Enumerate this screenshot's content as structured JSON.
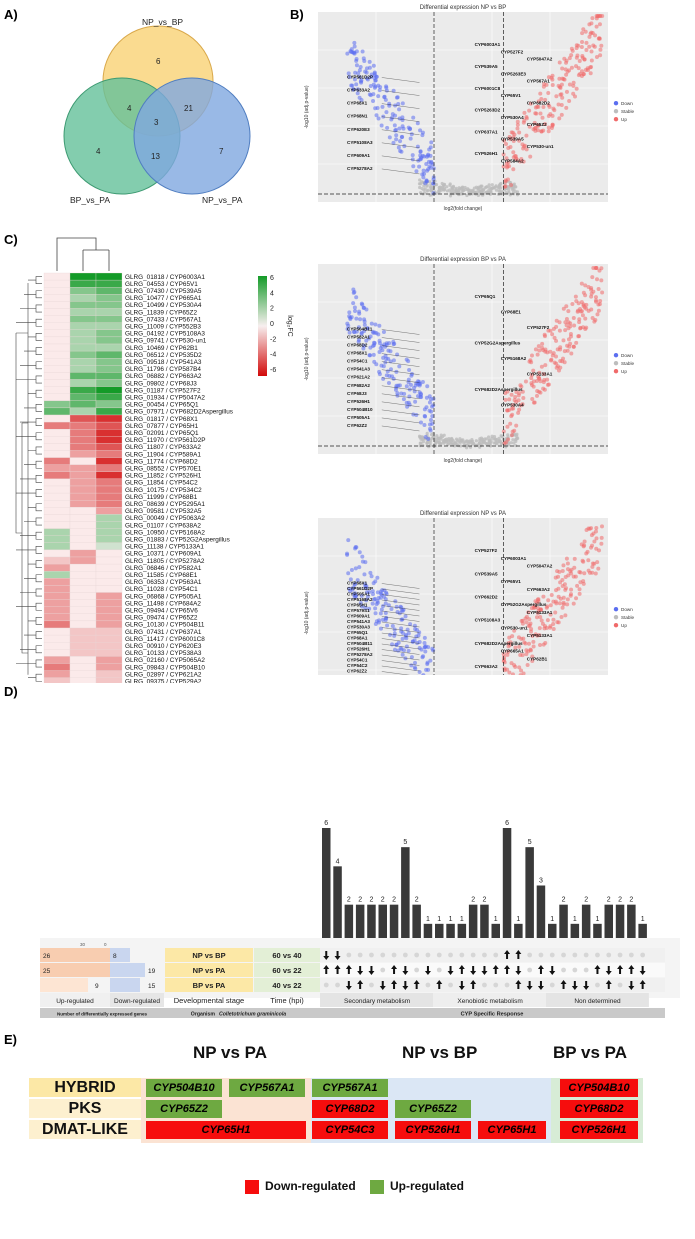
{
  "panels": {
    "a": "A)",
    "b": "B)",
    "c": "C)",
    "d": "D)",
    "e": "E)"
  },
  "venn": {
    "sets": [
      {
        "name": "NP_vs_BP",
        "color": "#f9d57c"
      },
      {
        "name": "BP_vs_PA",
        "color": "#64c09a"
      },
      {
        "name": "NP_vs_PA",
        "color": "#7fa8e0"
      }
    ],
    "regions": {
      "np_bp_only": "6",
      "bp_pa_only": "4",
      "np_pa_only": "7",
      "npbp_bppa": "4",
      "npbp_nppa": "21",
      "bppa_nppa": "13",
      "all": "3"
    }
  },
  "volcano": {
    "titles": [
      "Differential expression NP vs BP",
      "Differential expression BP vs PA",
      "Differential expression NP vs PA"
    ],
    "xlabel": "log2(fold change)",
    "ylabel": "-log10 (adj.p-value)",
    "legend": [
      {
        "label": "Down",
        "color": "#5b6ef0"
      },
      {
        "label": "Stable",
        "color": "#bdbdbd"
      },
      {
        "label": "Up",
        "color": "#f06a6a"
      }
    ],
    "plot1_labels_down": [
      "CYP561D2P",
      "CYP633A2",
      "CYP68X1",
      "CYP68N1",
      "CYP620E3",
      "CYP5108A3",
      "CYP609A1",
      "CYP5278A2"
    ],
    "plot1_labels_up": [
      "CYP6003A1",
      "CYP527F2",
      "CYP5047A2",
      "CYP539A5",
      "CYP5263E3",
      "CYP567A1",
      "CYP6001C8",
      "CYP65V1",
      "CYP682D2",
      "CYP5263D2",
      "CYP530A4",
      "CYP65Z2",
      "CYP637A1",
      "CYP539A5",
      "CYP530-un1",
      "CYP526H1",
      "CYP584A2"
    ],
    "plot2_labels_down": [
      "CYP504B11",
      "CYP582A1",
      "CYP68D2",
      "CYP68X1",
      "CYP54C1",
      "CYP541A3",
      "CYP621A2",
      "CYP682A2",
      "CYP68J3",
      "CYP526H1",
      "CYP504B10",
      "CYP505A1",
      "CYP62Z2"
    ],
    "plot2_labels_up": [
      "CYP65Q1",
      "CYP68E1",
      "CYP527F2",
      "CYP52G2Aspergillus",
      "CYP5168A2",
      "CYP5133A1",
      "CYP682D2Aspergillus",
      "CYP530A4"
    ],
    "plot3_labels_down": [
      "CYP68X1",
      "CYP561D2P",
      "CYP505A1",
      "CYP5168A2",
      "CYP65H1",
      "CYP579S1",
      "CYP609A1",
      "CYP541A3",
      "CYP530A3",
      "CYP65Q1",
      "CYP68A1",
      "CYP504B11",
      "CYP526H1",
      "CYP5278A2",
      "CYP54C1",
      "CYP54C2",
      "CYP62Z2",
      "CYP5295A1",
      "CYP538A3"
    ],
    "plot3_labels_up": [
      "CYP527F2",
      "CYP6003A1",
      "CYP5047A2",
      "CYP539A5",
      "CYP65V1",
      "CYP663A2",
      "CYP662D2",
      "CYP52G2Aspergillus",
      "CYP5133A1",
      "CYP5108A3",
      "CYP530-un1",
      "CYP5133A1",
      "CYP682D2Aspergillus",
      "CYP665A1",
      "CYP62B1",
      "CYP663A2"
    ]
  },
  "heatmap": {
    "columns": [
      "BP_vs_PA",
      "NP_vs_BP",
      "NP_vs_PA"
    ],
    "legend_title": "log₂FC",
    "legend_ticks": [
      "6",
      "4",
      "2",
      "0",
      "-2",
      "-4",
      "-6"
    ],
    "rows": [
      {
        "label": "GLRG_01818 / CYP6003A1",
        "v": [
          0,
          6,
          6
        ]
      },
      {
        "label": "GLRG_04553 / CYP65V1",
        "v": [
          0,
          5,
          5
        ]
      },
      {
        "label": "GLRG_07430 / CYP539A5",
        "v": [
          0,
          3,
          4
        ]
      },
      {
        "label": "GLRG_10477 / CYP665A1",
        "v": [
          0,
          2,
          3
        ]
      },
      {
        "label": "GLRG_10499 / CYP530A4",
        "v": [
          0,
          3,
          3
        ]
      },
      {
        "label": "GLRG_11839 / CYP65Z2",
        "v": [
          0,
          2,
          2
        ]
      },
      {
        "label": "GLRG_07433 / CYP567A1",
        "v": [
          0,
          3,
          3
        ]
      },
      {
        "label": "GLRG_11009 / CYP552B3",
        "v": [
          0,
          2,
          2
        ]
      },
      {
        "label": "GLRG_04192 / CYP5108A3",
        "v": [
          0,
          2,
          3
        ]
      },
      {
        "label": "GLRG_09741 / CYP530-un1",
        "v": [
          0,
          2,
          3
        ]
      },
      {
        "label": "GLRG_10469 / CYP62B1",
        "v": [
          0,
          2,
          2
        ]
      },
      {
        "label": "GLRG_06512 / CYP535D2",
        "v": [
          0,
          3,
          4
        ]
      },
      {
        "label": "GLRG_09518 / CYP541A3",
        "v": [
          0,
          2,
          3
        ]
      },
      {
        "label": "GLRG_11796 / CYP587B4",
        "v": [
          0,
          2,
          3
        ]
      },
      {
        "label": "GLRG_06882 / CYP663A2",
        "v": [
          0,
          4,
          4
        ]
      },
      {
        "label": "GLRG_09802 / CYP68J3",
        "v": [
          0,
          2,
          3
        ]
      },
      {
        "label": "GLRG_01187 / CYP527F2",
        "v": [
          0,
          5,
          6
        ]
      },
      {
        "label": "GLRG_01934 / CYP5047A2",
        "v": [
          0,
          4,
          5
        ]
      },
      {
        "label": "GLRG_00454 / CYP65Q1",
        "v": [
          3,
          4,
          3
        ]
      },
      {
        "label": "GLRG_07971 / CYP682D2Aspergillus",
        "v": [
          4,
          2,
          5
        ]
      },
      {
        "label": "GLRG_01817 / CYP68X1",
        "v": [
          0,
          -4,
          -5
        ]
      },
      {
        "label": "GLRG_07877 / CYP65H1",
        "v": [
          -3,
          -3,
          -4
        ]
      },
      {
        "label": "GLRG_02091 / CYP65Q1",
        "v": [
          0,
          -3,
          -5
        ]
      },
      {
        "label": "GLRG_11970 / CYP561D2P",
        "v": [
          0,
          -3,
          -5
        ]
      },
      {
        "label": "GLRG_11807 / CYP633A2",
        "v": [
          0,
          -3,
          -4
        ]
      },
      {
        "label": "GLRG_11904 / CYP589A1",
        "v": [
          0,
          -2,
          -3
        ]
      },
      {
        "label": "GLRG_11774 / CYP68D2",
        "v": [
          -3,
          0,
          -5
        ]
      },
      {
        "label": "GLRG_08552 / CYP570E1",
        "v": [
          -2,
          -2,
          -3
        ]
      },
      {
        "label": "GLRG_11852 / CYP526H1",
        "v": [
          -3,
          -2,
          -5
        ]
      },
      {
        "label": "GLRG_11854 / CYP54C2",
        "v": [
          0,
          -2,
          -3
        ]
      },
      {
        "label": "GLRG_10175 / CYP534C2",
        "v": [
          0,
          -2,
          -3
        ]
      },
      {
        "label": "GLRG_11999 / CYP68B1",
        "v": [
          0,
          -2,
          -3
        ]
      },
      {
        "label": "GLRG_08639 / CYP5295A1",
        "v": [
          0,
          -2,
          -3
        ]
      },
      {
        "label": "GLRG_09581 / CYP532A5",
        "v": [
          0,
          0,
          -2
        ]
      },
      {
        "label": "GLRG_00049 / CYP5063A2",
        "v": [
          0,
          0,
          2
        ]
      },
      {
        "label": "GLRG_01107 / CYP638A2",
        "v": [
          0,
          0,
          2
        ]
      },
      {
        "label": "GLRG_10950 / CYP5168A2",
        "v": [
          2,
          0,
          2
        ]
      },
      {
        "label": "GLRG_01883 / CYP52G2Aspergillus",
        "v": [
          2,
          0,
          2
        ]
      },
      {
        "label": "GLRG_11138 / CYP5133A1",
        "v": [
          2,
          0,
          1
        ]
      },
      {
        "label": "GLRG_10371 / CYP609A1",
        "v": [
          0,
          -2,
          0
        ]
      },
      {
        "label": "GLRG_11805 / CYP5278A2",
        "v": [
          -1,
          -2,
          0
        ]
      },
      {
        "label": "GLRG_06846 / CYP582A1",
        "v": [
          -2,
          0,
          0
        ]
      },
      {
        "label": "GLRG_11585 / CYP68E1",
        "v": [
          2,
          0,
          0
        ]
      },
      {
        "label": "GLRG_06353 / CYP563A1",
        "v": [
          -2,
          0,
          0
        ]
      },
      {
        "label": "GLRG_11028 / CYP54C1",
        "v": [
          -2,
          0,
          0
        ]
      },
      {
        "label": "GLRG_06868 / CYP505A1",
        "v": [
          -2,
          0,
          -2
        ]
      },
      {
        "label": "GLRG_11498 / CYP684A2",
        "v": [
          -2,
          0,
          -2
        ]
      },
      {
        "label": "GLRG_09494 / CYP65V6",
        "v": [
          -2,
          0,
          -2
        ]
      },
      {
        "label": "GLRG_09474 / CYP65Z2",
        "v": [
          -2,
          0,
          -2
        ]
      },
      {
        "label": "GLRG_10130 / CYP504B11",
        "v": [
          -3,
          0,
          -2
        ]
      },
      {
        "label": "GLRG_07431 / CYP637A1",
        "v": [
          0,
          -1,
          -1
        ]
      },
      {
        "label": "GLRG_11417 / CYP6001C8",
        "v": [
          0,
          -1,
          -1
        ]
      },
      {
        "label": "GLRG_00910 / CYP620E3",
        "v": [
          0,
          -1,
          -1
        ]
      },
      {
        "label": "GLRG_10133 / CYP538A3",
        "v": [
          0,
          -1,
          -1
        ]
      },
      {
        "label": "GLRG_02160 / CYP5065A2",
        "v": [
          -2,
          0,
          -2
        ]
      },
      {
        "label": "GLRG_09843 / CYP504B10",
        "v": [
          -3,
          0,
          -2
        ]
      },
      {
        "label": "GLRG_02897 / CYP621A2",
        "v": [
          -2,
          0,
          -1
        ]
      },
      {
        "label": "GLRG_09375 / CYP529A2",
        "v": [
          -1,
          0,
          -1
        ]
      }
    ]
  },
  "upset": {
    "bars": [
      6,
      4,
      2,
      2,
      2,
      2,
      2,
      5,
      2,
      1,
      1,
      1,
      1,
      2,
      2,
      1,
      6,
      1,
      5,
      3,
      1,
      2,
      1,
      2,
      1,
      2,
      2,
      2,
      1
    ],
    "groups": [
      {
        "label": "Secondary metabolism",
        "from": 0,
        "to": 9
      },
      {
        "label": "Xenobiotic metabolism",
        "from": 10,
        "to": 19
      },
      {
        "label": "Non determined",
        "from": 20,
        "to": 28
      }
    ],
    "rows": [
      {
        "comparison": "NP vs BP",
        "time": "60 vs 40",
        "up": "26",
        "down": "8"
      },
      {
        "comparison": "NP vs PA",
        "time": "60 vs 22",
        "up": "25",
        "down": "19"
      },
      {
        "comparison": "BP vs PA",
        "time": "40 vs 22",
        "up": "9",
        "down": "15"
      }
    ],
    "headers": {
      "up": "Up-regulated",
      "down": "Down-regulated",
      "stage": "Developmental stage",
      "time": "Time (hpi)"
    },
    "footer": {
      "genes": "Number of differentially expressed genes",
      "organism": "Organism",
      "organism_name": "Colletotrichum graminicola",
      "cyp": "CYP Specific Response"
    },
    "scale_top": "30",
    "scale_zero": "0",
    "arrows": [
      [
        "d",
        "d",
        "",
        "",
        "",
        "",
        "",
        "",
        "",
        "",
        "",
        "",
        "",
        "",
        "",
        "",
        "u",
        "u",
        "",
        "",
        "",
        "",
        "",
        "",
        "",
        "",
        "",
        "",
        ""
      ],
      [
        "u",
        "u",
        "u",
        "d",
        "d",
        "",
        "u",
        "d",
        "",
        "d",
        "",
        "d",
        "u",
        "d",
        "d",
        "u",
        "u",
        "d",
        "",
        "u",
        "d",
        "",
        "",
        "",
        "u",
        "d",
        "u",
        "u",
        "d"
      ],
      [
        "",
        "",
        "d",
        "u",
        "",
        "d",
        "u",
        "d",
        "u",
        "",
        "u",
        "",
        "d",
        "u",
        "",
        "",
        "",
        "u",
        "d",
        "d",
        "",
        "u",
        "d",
        "d",
        "",
        "u",
        "",
        "d",
        "u"
      ]
    ]
  },
  "enzymes": {
    "headers": [
      "NP vs PA",
      "NP vs BP",
      "BP vs PA"
    ],
    "row_labels": [
      "HYBRID",
      "PKS",
      "DMAT-LIKE"
    ],
    "genes": {
      "r1": [
        "CYP504B10",
        "CYP567A1",
        "CYP567A1",
        "CYP504B10"
      ],
      "r2": [
        "CYP65Z2",
        "CYP68D2",
        "CYP65Z2",
        "CYP68D2"
      ],
      "r3": [
        "CYP65H1",
        "CYP54C3",
        "CYP526H1",
        "CYP65H1",
        "CYP526H1"
      ]
    },
    "legend": {
      "down": "Down-regulated",
      "up": "Up-regulated"
    }
  }
}
